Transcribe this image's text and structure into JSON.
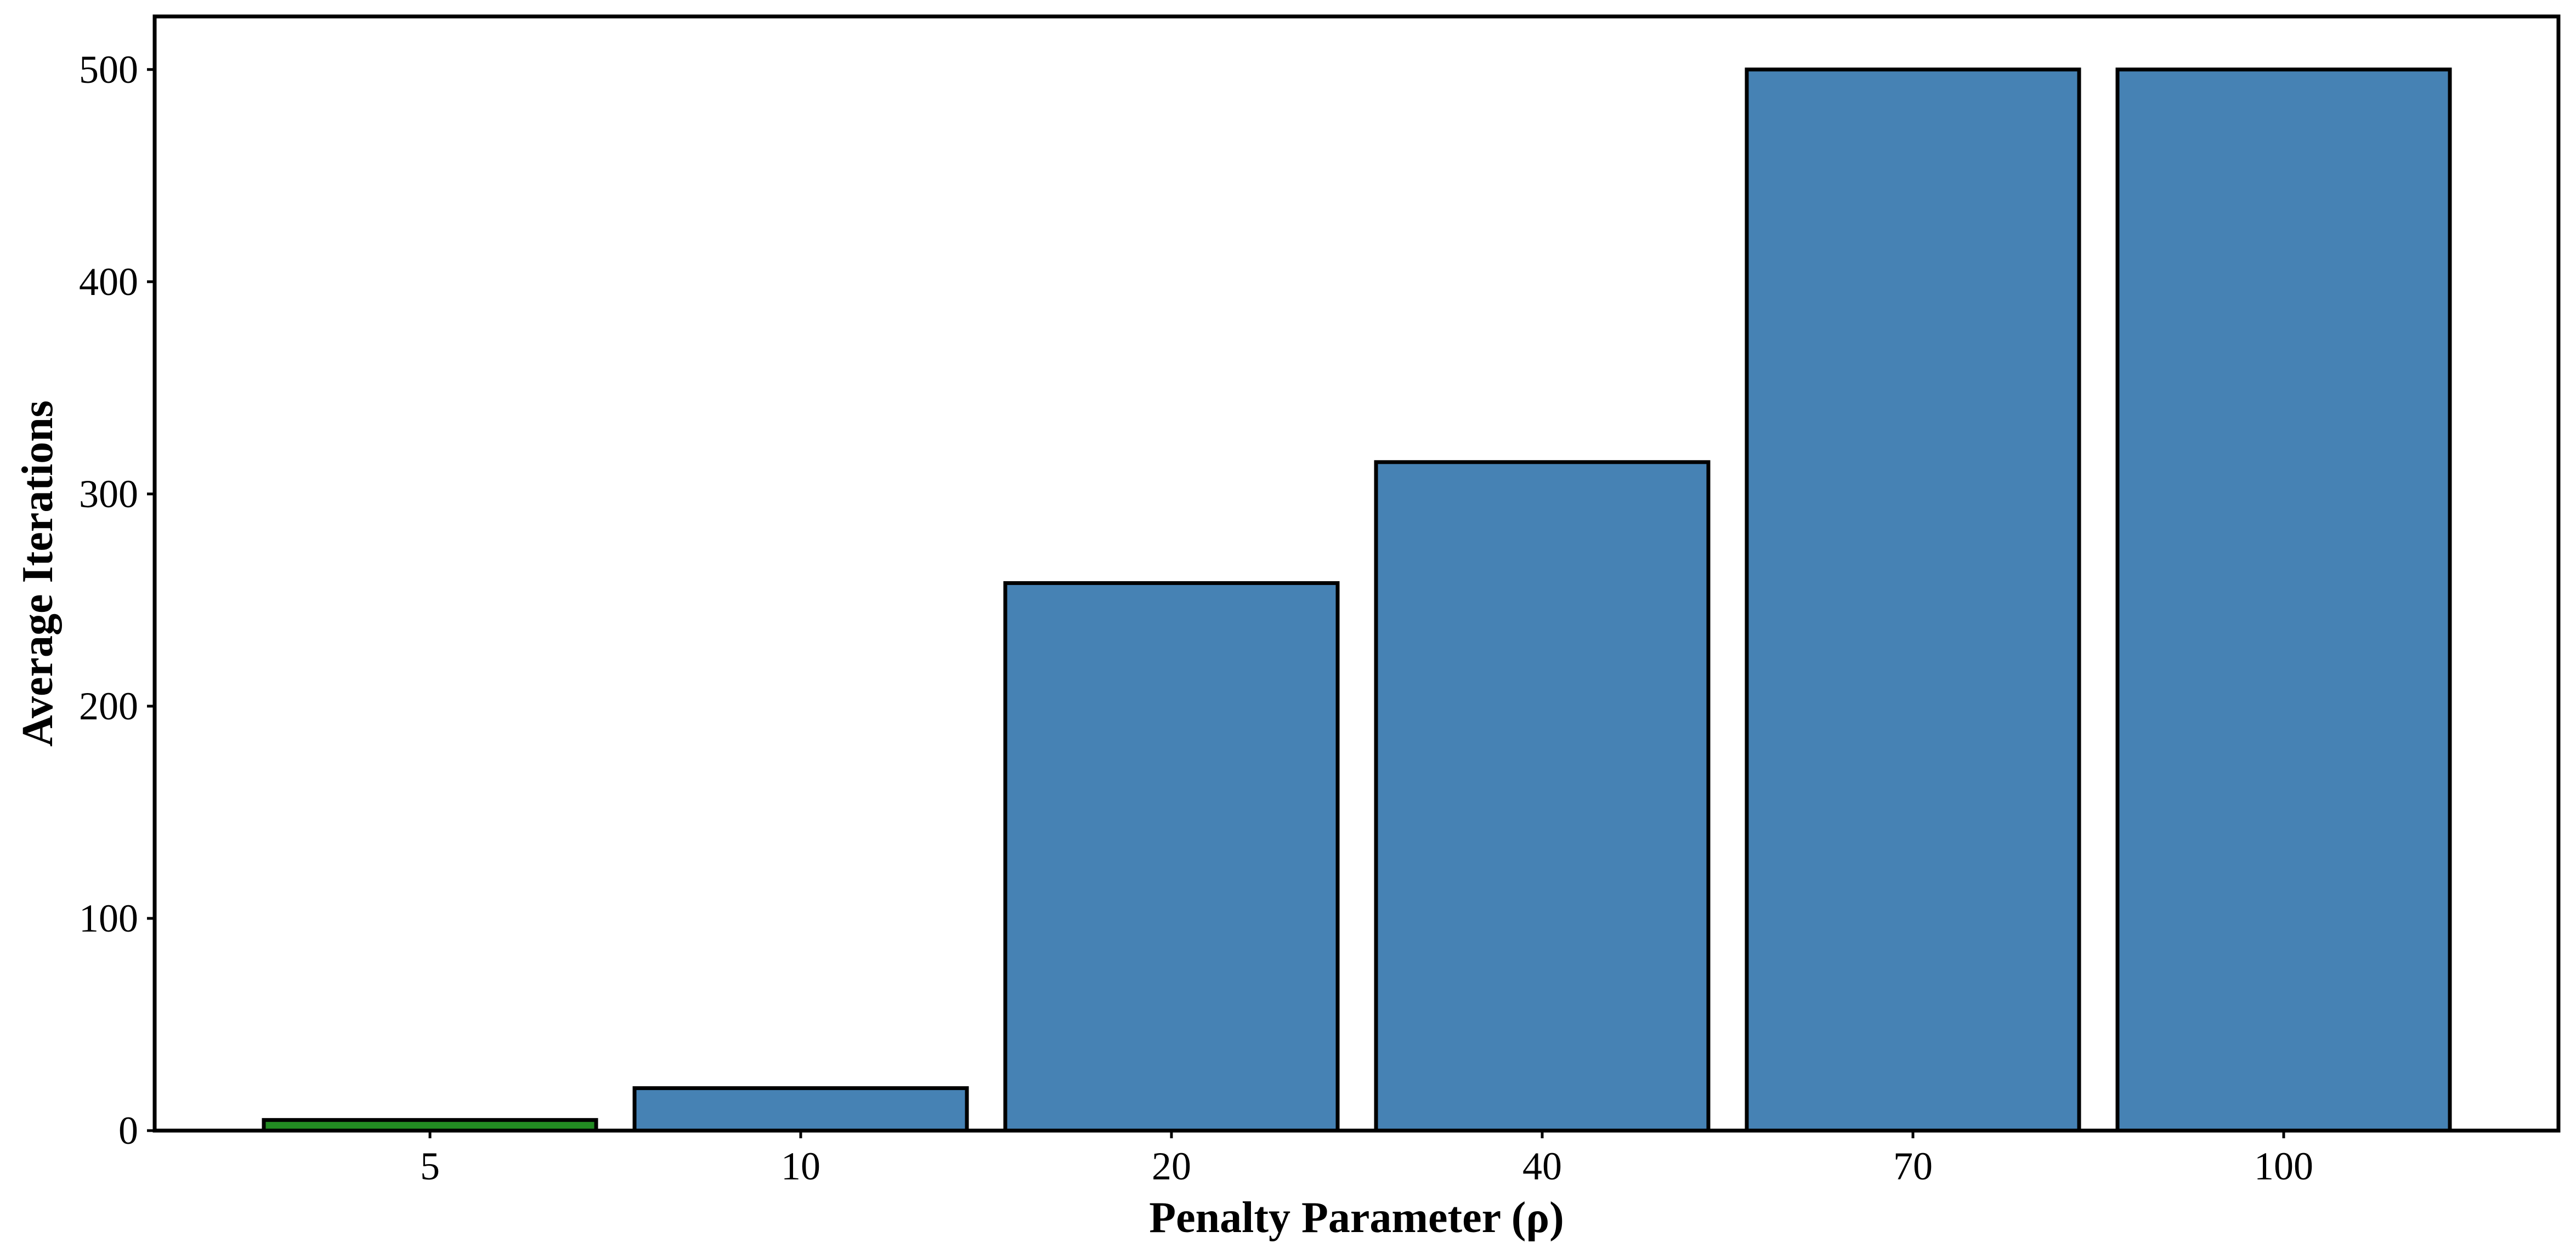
{
  "chart_data": {
    "type": "bar",
    "categories": [
      "5",
      "10",
      "20",
      "40",
      "70",
      "100"
    ],
    "values": [
      5,
      20,
      258,
      315,
      500,
      500
    ],
    "bar_colors": [
      "#228B22",
      "#4682B4",
      "#4682B4",
      "#4682B4",
      "#4682B4",
      "#4682B4"
    ],
    "edge_color": "#000000",
    "xlabel": "Penalty Parameter (ρ)",
    "ylabel": "Average Iterations",
    "ylim": [
      0,
      525
    ],
    "yticks": [
      0,
      100,
      200,
      300,
      400,
      500
    ],
    "ytick_labels": [
      "0",
      "100",
      "200",
      "300",
      "400",
      "500"
    ],
    "grid": false,
    "legend": "none"
  }
}
